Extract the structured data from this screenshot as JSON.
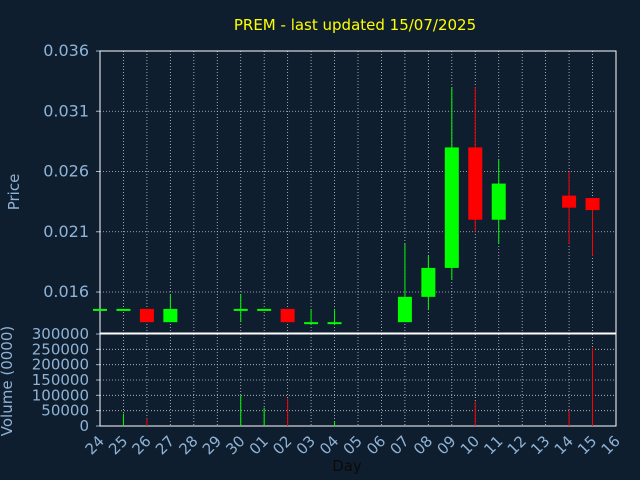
{
  "chart_data": [
    {
      "type": "candlestick",
      "title": "PREM - last updated 15/07/2025",
      "ylabel": "Price",
      "ylim": [
        0.0126,
        0.036
      ],
      "yticks": [
        "0.036",
        "0.031",
        "0.026",
        "0.021",
        "0.016"
      ],
      "yticks_values": [
        0.036,
        0.031,
        0.026,
        0.021,
        0.016
      ],
      "grid": true,
      "up_color": "#00ff00",
      "down_color": "#ff0000",
      "candles": [
        {
          "x": 0,
          "open": 0.0146,
          "high": 0.0146,
          "low": 0.0146,
          "close": 0.0146
        },
        {
          "x": 1,
          "open": 0.0146,
          "high": 0.0146,
          "low": 0.0146,
          "close": 0.0146
        },
        {
          "x": 2,
          "open": 0.0146,
          "high": 0.0146,
          "low": 0.0135,
          "close": 0.0135
        },
        {
          "x": 3,
          "open": 0.0135,
          "high": 0.0158,
          "low": 0.0135,
          "close": 0.0146
        },
        {
          "x": 6,
          "open": 0.0146,
          "high": 0.0158,
          "low": 0.0135,
          "close": 0.0146
        },
        {
          "x": 7,
          "open": 0.0146,
          "high": 0.0146,
          "low": 0.0146,
          "close": 0.0146
        },
        {
          "x": 8,
          "open": 0.0146,
          "high": 0.0146,
          "low": 0.0135,
          "close": 0.0135
        },
        {
          "x": 9,
          "open": 0.0135,
          "high": 0.0146,
          "low": 0.0135,
          "close": 0.0135
        },
        {
          "x": 10,
          "open": 0.0135,
          "high": 0.0146,
          "low": 0.0135,
          "close": 0.0135
        },
        {
          "x": 13,
          "open": 0.0135,
          "high": 0.02,
          "low": 0.0135,
          "close": 0.0156
        },
        {
          "x": 14,
          "open": 0.0156,
          "high": 0.019,
          "low": 0.0145,
          "close": 0.018
        },
        {
          "x": 15,
          "open": 0.018,
          "high": 0.033,
          "low": 0.017,
          "close": 0.028
        },
        {
          "x": 16,
          "open": 0.028,
          "high": 0.033,
          "low": 0.021,
          "close": 0.022
        },
        {
          "x": 17,
          "open": 0.022,
          "high": 0.027,
          "low": 0.02,
          "close": 0.025
        },
        {
          "x": 20,
          "open": 0.024,
          "high": 0.026,
          "low": 0.02,
          "close": 0.023
        },
        {
          "x": 21,
          "open": 0.0238,
          "high": 0.0238,
          "low": 0.019,
          "close": 0.0228
        }
      ]
    },
    {
      "type": "bar",
      "ylabel": "Volume (0000)",
      "ylim": [
        0,
        300000
      ],
      "yticks": [
        "300000",
        "250000",
        "200000",
        "150000",
        "100000",
        "50000",
        "0"
      ],
      "yticks_values": [
        300000,
        250000,
        200000,
        150000,
        100000,
        50000,
        0
      ],
      "xlabel": "Day",
      "categories": [
        "24",
        "25",
        "26",
        "27",
        "28",
        "29",
        "30",
        "01",
        "02",
        "03",
        "04",
        "05",
        "06",
        "07",
        "08",
        "09",
        "10",
        "11",
        "12",
        "13",
        "14",
        "15",
        "16"
      ],
      "bars": [
        {
          "x": 1,
          "value": 40000,
          "dir": "up"
        },
        {
          "x": 2,
          "value": 25000,
          "dir": "down"
        },
        {
          "x": 6,
          "value": 100000,
          "dir": "up"
        },
        {
          "x": 7,
          "value": 60000,
          "dir": "up"
        },
        {
          "x": 8,
          "value": 90000,
          "dir": "down"
        },
        {
          "x": 10,
          "value": 15000,
          "dir": "up"
        },
        {
          "x": 16,
          "value": 80000,
          "dir": "down"
        },
        {
          "x": 20,
          "value": 50000,
          "dir": "down"
        },
        {
          "x": 21,
          "value": 255000,
          "dir": "down"
        }
      ]
    }
  ]
}
